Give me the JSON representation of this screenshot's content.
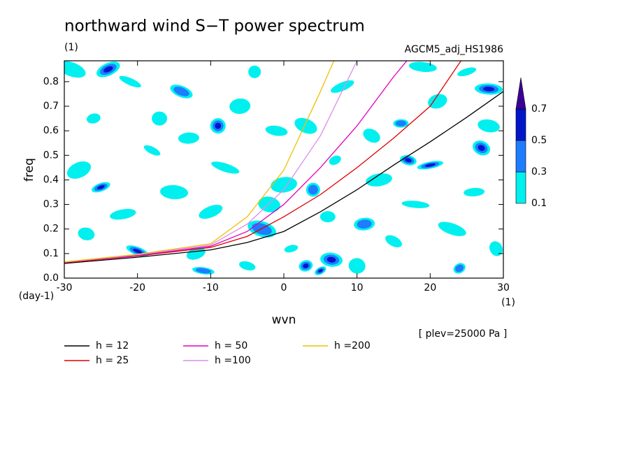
{
  "chart_data": {
    "type": "contour_line",
    "title": "northward wind S−T power spectrum",
    "subtitle": "(1)",
    "subtitle_right": "AGCM5_adj_HS1986",
    "x_label": "wvn",
    "x_unit": "(1)",
    "y_label": "freq",
    "y_unit": "(day-1)",
    "note": "[ plev=25000 Pa ]",
    "xlim": [
      -30,
      30
    ],
    "xticks": [
      -30,
      -20,
      -10,
      0,
      10,
      20,
      30
    ],
    "ylim": [
      0,
      0.885
    ],
    "yticks": [
      {
        "value": 0,
        "label": "0.0"
      },
      0.1,
      0.2,
      0.3,
      0.4,
      0.5,
      0.6,
      0.7,
      0.8
    ],
    "levels": [
      0.1,
      0.3,
      0.5,
      0.7
    ],
    "level_colors": [
      "#00f0f0",
      "#1e7cff",
      "#0016c8",
      "#3c0096"
    ],
    "cells": [
      {
        "x": 5,
        "y": 0.03,
        "v": 0.8
      },
      {
        "x": 6.5,
        "y": 0.075,
        "v": 0.8
      },
      {
        "x": 3,
        "y": 0.05,
        "v": 0.6
      },
      {
        "x": -20,
        "y": 0.11,
        "v": 0.6
      },
      {
        "x": -9,
        "y": 0.62,
        "v": 0.6
      },
      {
        "x": -24,
        "y": 0.85,
        "v": 0.6
      },
      {
        "x": 17,
        "y": 0.48,
        "v": 0.6
      },
      {
        "x": 20,
        "y": 0.46,
        "v": 0.6
      },
      {
        "x": 27,
        "y": 0.53,
        "v": 0.6
      },
      {
        "x": 28,
        "y": 0.77,
        "v": 0.6
      },
      {
        "x": -25,
        "y": 0.37,
        "v": 0.6
      },
      {
        "x": -3,
        "y": 0.2,
        "v": 0.4
      },
      {
        "x": 11,
        "y": 0.22,
        "v": 0.4
      },
      {
        "x": 24,
        "y": 0.04,
        "v": 0.4
      },
      {
        "x": -11,
        "y": 0.03,
        "v": 0.4
      },
      {
        "x": 4,
        "y": 0.36,
        "v": 0.4
      },
      {
        "x": -14,
        "y": 0.76,
        "v": 0.4
      },
      {
        "x": 16,
        "y": 0.63,
        "v": 0.4
      },
      {
        "x": -28,
        "y": 0.44,
        "v": 0.2
      },
      {
        "x": -27,
        "y": 0.18,
        "v": 0.2
      },
      {
        "x": -22,
        "y": 0.26,
        "v": 0.2
      },
      {
        "x": -18,
        "y": 0.52,
        "v": 0.2
      },
      {
        "x": -15,
        "y": 0.35,
        "v": 0.2
      },
      {
        "x": -12,
        "y": 0.1,
        "v": 0.2
      },
      {
        "x": -8,
        "y": 0.45,
        "v": 0.2
      },
      {
        "x": -6,
        "y": 0.7,
        "v": 0.2
      },
      {
        "x": -4,
        "y": 0.84,
        "v": 0.2
      },
      {
        "x": -1,
        "y": 0.6,
        "v": 0.2
      },
      {
        "x": 1,
        "y": 0.12,
        "v": 0.2
      },
      {
        "x": 3,
        "y": 0.62,
        "v": 0.2
      },
      {
        "x": 6,
        "y": 0.25,
        "v": 0.2
      },
      {
        "x": 8,
        "y": 0.78,
        "v": 0.2
      },
      {
        "x": 10,
        "y": 0.05,
        "v": 0.2
      },
      {
        "x": 13,
        "y": 0.4,
        "v": 0.2
      },
      {
        "x": 15,
        "y": 0.15,
        "v": 0.2
      },
      {
        "x": 18,
        "y": 0.3,
        "v": 0.2
      },
      {
        "x": 21,
        "y": 0.72,
        "v": 0.2
      },
      {
        "x": 23,
        "y": 0.2,
        "v": 0.2
      },
      {
        "x": 26,
        "y": 0.35,
        "v": 0.2
      },
      {
        "x": 29,
        "y": 0.12,
        "v": 0.2
      },
      {
        "x": 28,
        "y": 0.62,
        "v": 0.2
      },
      {
        "x": -26,
        "y": 0.65,
        "v": 0.2
      },
      {
        "x": -21,
        "y": 0.8,
        "v": 0.2
      },
      {
        "x": -17,
        "y": 0.65,
        "v": 0.2
      },
      {
        "x": -10,
        "y": 0.27,
        "v": 0.2
      },
      {
        "x": -5,
        "y": 0.05,
        "v": 0.2
      },
      {
        "x": 0,
        "y": 0.38,
        "v": 0.2
      },
      {
        "x": 12,
        "y": 0.58,
        "v": 0.2
      },
      {
        "x": 19,
        "y": 0.86,
        "v": 0.2
      },
      {
        "x": 25,
        "y": 0.84,
        "v": 0.2
      },
      {
        "x": -29,
        "y": 0.85,
        "v": 0.2
      },
      {
        "x": -13,
        "y": 0.57,
        "v": 0.2
      },
      {
        "x": 7,
        "y": 0.48,
        "v": 0.2
      },
      {
        "x": -2,
        "y": 0.3,
        "v": 0.2
      }
    ],
    "x": [
      -30,
      -20,
      -10,
      -5,
      0,
      5,
      10,
      15,
      20,
      25,
      30
    ],
    "series": [
      {
        "name": "h = 12",
        "color": "#000000",
        "values": [
          0.06,
          0.085,
          0.115,
          0.145,
          0.19,
          0.27,
          0.36,
          0.46,
          0.555,
          0.655,
          0.76
        ]
      },
      {
        "name": "h = 25",
        "color": "#e00000",
        "values": [
          0.063,
          0.09,
          0.125,
          0.17,
          0.25,
          0.34,
          0.45,
          0.57,
          0.7,
          0.92,
          null
        ]
      },
      {
        "name": "h = 50",
        "color": "#e000c0",
        "values": [
          0.064,
          0.092,
          0.13,
          0.19,
          0.3,
          0.45,
          0.62,
          0.82,
          1.0,
          null,
          null
        ]
      },
      {
        "name": "h =100",
        "color": "#d890e8",
        "values": [
          0.065,
          0.095,
          0.135,
          0.22,
          0.36,
          0.58,
          0.885,
          null,
          null,
          null,
          null
        ]
      },
      {
        "name": "h =200",
        "color": "#f0c000",
        "values": [
          0.066,
          0.097,
          0.14,
          0.25,
          0.44,
          0.76,
          1.1,
          null,
          null,
          null,
          null
        ]
      }
    ]
  }
}
